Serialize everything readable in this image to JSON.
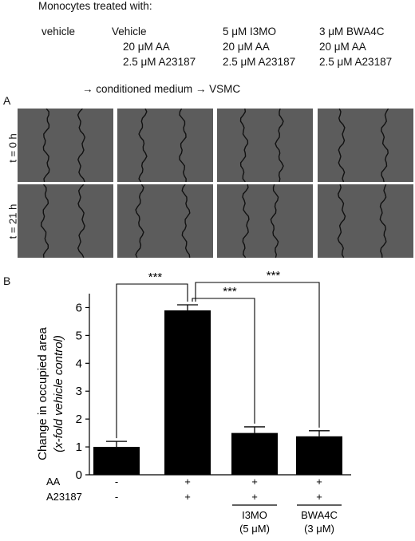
{
  "header": {
    "title": "Monocytes treated with:",
    "groups": [
      {
        "lines": [
          "vehicle"
        ]
      },
      {
        "lines": [
          "Vehicle",
          "20 μM AA",
          "2.5 μM A23187"
        ]
      },
      {
        "lines": [
          "5 μM I3MO",
          "20 μM AA",
          "2.5 μM A23187"
        ]
      },
      {
        "lines": [
          "3 μM BWA4C",
          "20 μM AA",
          "2.5 μM A23187"
        ]
      }
    ],
    "flow_text": "→ conditioned medium → VSMC"
  },
  "panel_a": {
    "label": "A",
    "row_labels": [
      "t = 0 h",
      "t = 21 h"
    ]
  },
  "panel_b": {
    "label": "B"
  },
  "colors": {
    "tile_bg": "#5c5c5c",
    "wound_line": "#111111",
    "bar_fill": "#000000"
  },
  "chart_data": {
    "type": "bar",
    "categories": [
      "vehicle",
      "AA + A23187",
      "I3MO (5 μM)",
      "BWA4C (3 μM)"
    ],
    "values": [
      1.0,
      5.9,
      1.5,
      1.38
    ],
    "errors": [
      0.2,
      0.2,
      0.22,
      0.2
    ],
    "ylabel_line1": "Change in occupied area",
    "ylabel_line2": "(x-fold vehicle control)",
    "ylim": [
      0,
      6.5
    ],
    "yticks": [
      0,
      1,
      2,
      3,
      4,
      5,
      6
    ],
    "significance": [
      {
        "from": 0,
        "to": 1,
        "label": "***"
      },
      {
        "from": 1,
        "to": 2,
        "label": "***"
      },
      {
        "from": 1,
        "to": 3,
        "label": "***"
      }
    ],
    "rows": [
      {
        "name": "AA",
        "marks": [
          "-",
          "+",
          "+",
          "+"
        ]
      },
      {
        "name": "A23187",
        "marks": [
          "-",
          "+",
          "+",
          "+"
        ]
      }
    ],
    "inhibitors": [
      {
        "index": 2,
        "name": "I3MO",
        "dose": "(5 μM)"
      },
      {
        "index": 3,
        "name": "BWA4C",
        "dose": "(3 μM)"
      }
    ]
  }
}
